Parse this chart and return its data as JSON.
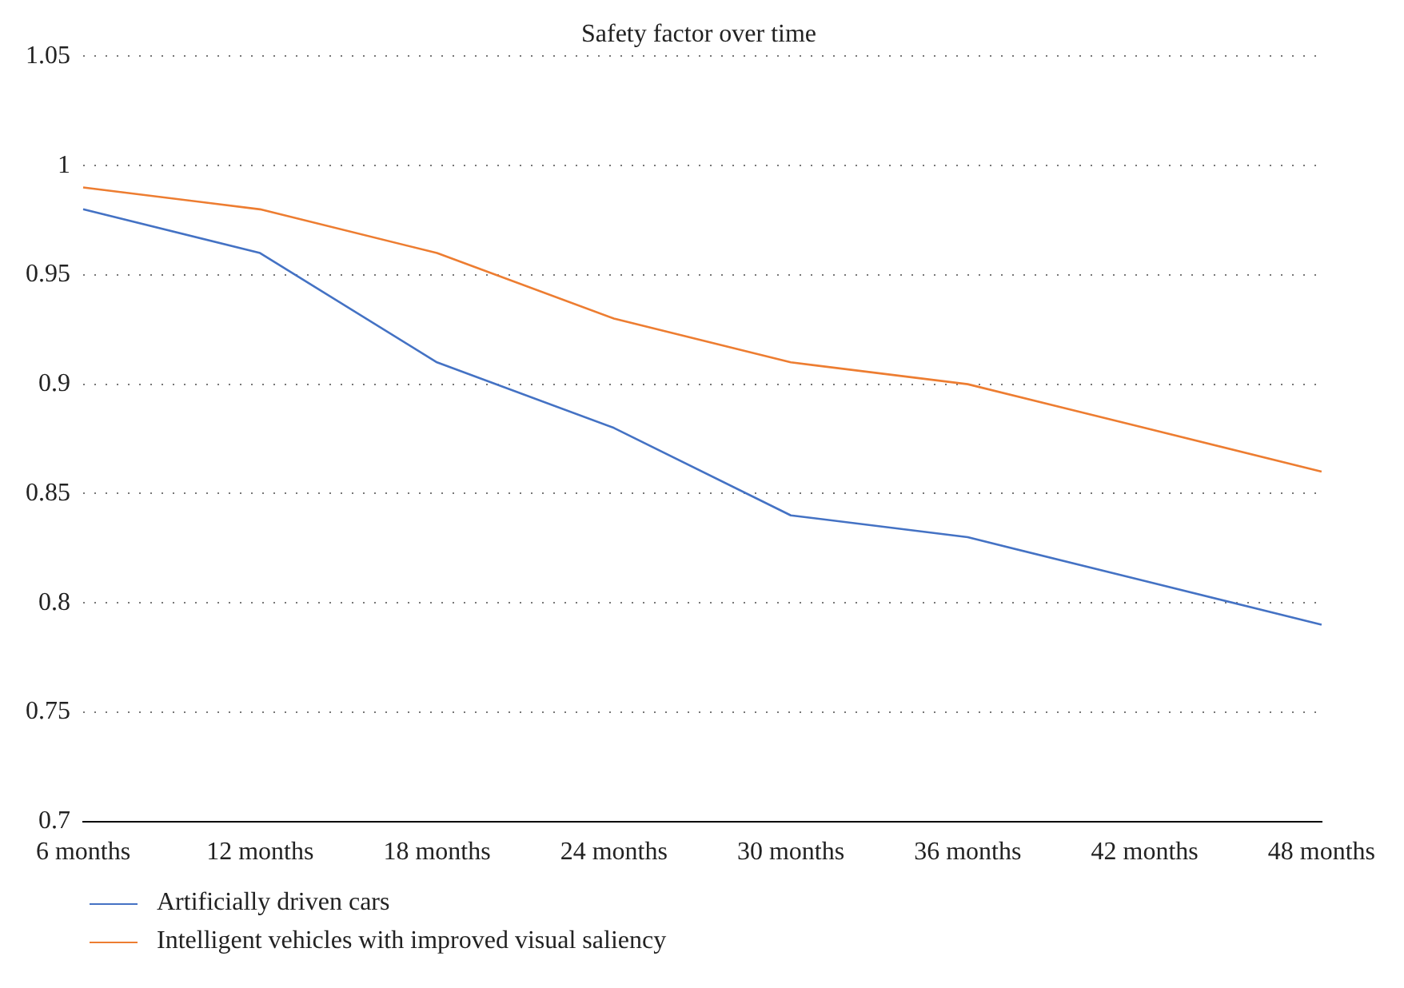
{
  "chart_data": {
    "type": "line",
    "title": "Safety factor over time",
    "categories": [
      "6 months",
      "12 months",
      "18 months",
      "24 months",
      "30 months",
      "36 months",
      "42 months",
      "48 months"
    ],
    "series": [
      {
        "name": "Artificially driven cars",
        "color": "#4472c4",
        "values": [
          0.98,
          0.96,
          0.91,
          0.88,
          0.84,
          0.83,
          0.81,
          0.79
        ]
      },
      {
        "name": "Intelligent vehicles with improved visual saliency",
        "color": "#ed7d31",
        "values": [
          0.99,
          0.98,
          0.96,
          0.93,
          0.91,
          0.9,
          0.88,
          0.86
        ]
      }
    ],
    "ylim": [
      0.7,
      1.05
    ],
    "yticks": [
      0.7,
      0.75,
      0.8,
      0.85,
      0.9,
      0.95,
      1,
      1.05
    ],
    "grid": "y",
    "legend": "bottom",
    "marker": "none",
    "line_style": "solid"
  }
}
